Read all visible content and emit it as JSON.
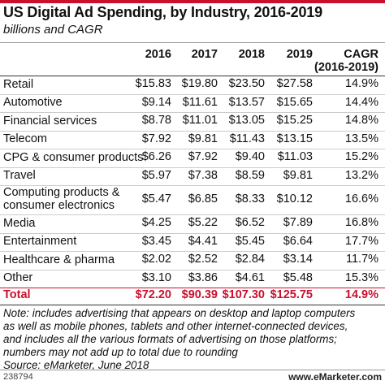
{
  "header": {
    "title": "US Digital Ad Spending, by Industry, 2016-2019",
    "subtitle": "billions and CAGR"
  },
  "table": {
    "columns": [
      "2016",
      "2017",
      "2018",
      "2019"
    ],
    "cagr_header": [
      "CAGR",
      "(2016-2019)"
    ],
    "rows": [
      {
        "label": [
          "Retail"
        ],
        "cells": [
          "$15.83",
          "$19.80",
          "$23.50",
          "$27.58",
          "14.9%"
        ]
      },
      {
        "label": [
          "Automotive"
        ],
        "cells": [
          "$9.14",
          "$11.61",
          "$13.57",
          "$15.65",
          "14.4%"
        ]
      },
      {
        "label": [
          "Financial services"
        ],
        "cells": [
          "$8.78",
          "$11.01",
          "$13.05",
          "$15.25",
          "14.8%"
        ]
      },
      {
        "label": [
          "Telecom"
        ],
        "cells": [
          "$7.92",
          "$9.81",
          "$11.43",
          "$13.15",
          "13.5%"
        ]
      },
      {
        "label": [
          "CPG & consumer products"
        ],
        "cells": [
          "$6.26",
          "$7.92",
          "$9.40",
          "$11.03",
          "15.2%"
        ]
      },
      {
        "label": [
          "Travel"
        ],
        "cells": [
          "$5.97",
          "$7.38",
          "$8.59",
          "$9.81",
          "13.2%"
        ]
      },
      {
        "label": [
          "Computing products &",
          "consumer electronics"
        ],
        "cells": [
          "$5.47",
          "$6.85",
          "$8.33",
          "$10.12",
          "16.6%"
        ]
      },
      {
        "label": [
          "Media"
        ],
        "cells": [
          "$4.25",
          "$5.22",
          "$6.52",
          "$7.89",
          "16.8%"
        ]
      },
      {
        "label": [
          "Entertainment"
        ],
        "cells": [
          "$3.45",
          "$4.41",
          "$5.45",
          "$6.64",
          "17.7%"
        ]
      },
      {
        "label": [
          "Healthcare & pharma"
        ],
        "cells": [
          "$2.02",
          "$2.52",
          "$2.84",
          "$3.14",
          "11.7%"
        ]
      },
      {
        "label": [
          "Other"
        ],
        "cells": [
          "$3.10",
          "$3.86",
          "$4.61",
          "$5.48",
          "15.3%"
        ]
      }
    ],
    "total": {
      "label": "Total",
      "cells": [
        "$72.20",
        "$90.39",
        "$107.30",
        "$125.75",
        "14.9%"
      ]
    }
  },
  "note": [
    "Note: includes advertising that appears on desktop and laptop computers",
    "as well as mobile phones, tablets and other internet-connected devices,",
    "and includes all the various formats of advertising on those platforms;",
    "numbers may not add up to total due to rounding"
  ],
  "source": "Source: eMarketer, June 2018",
  "footer": {
    "id": "238794",
    "brand": "www.eMarketer.com"
  }
}
